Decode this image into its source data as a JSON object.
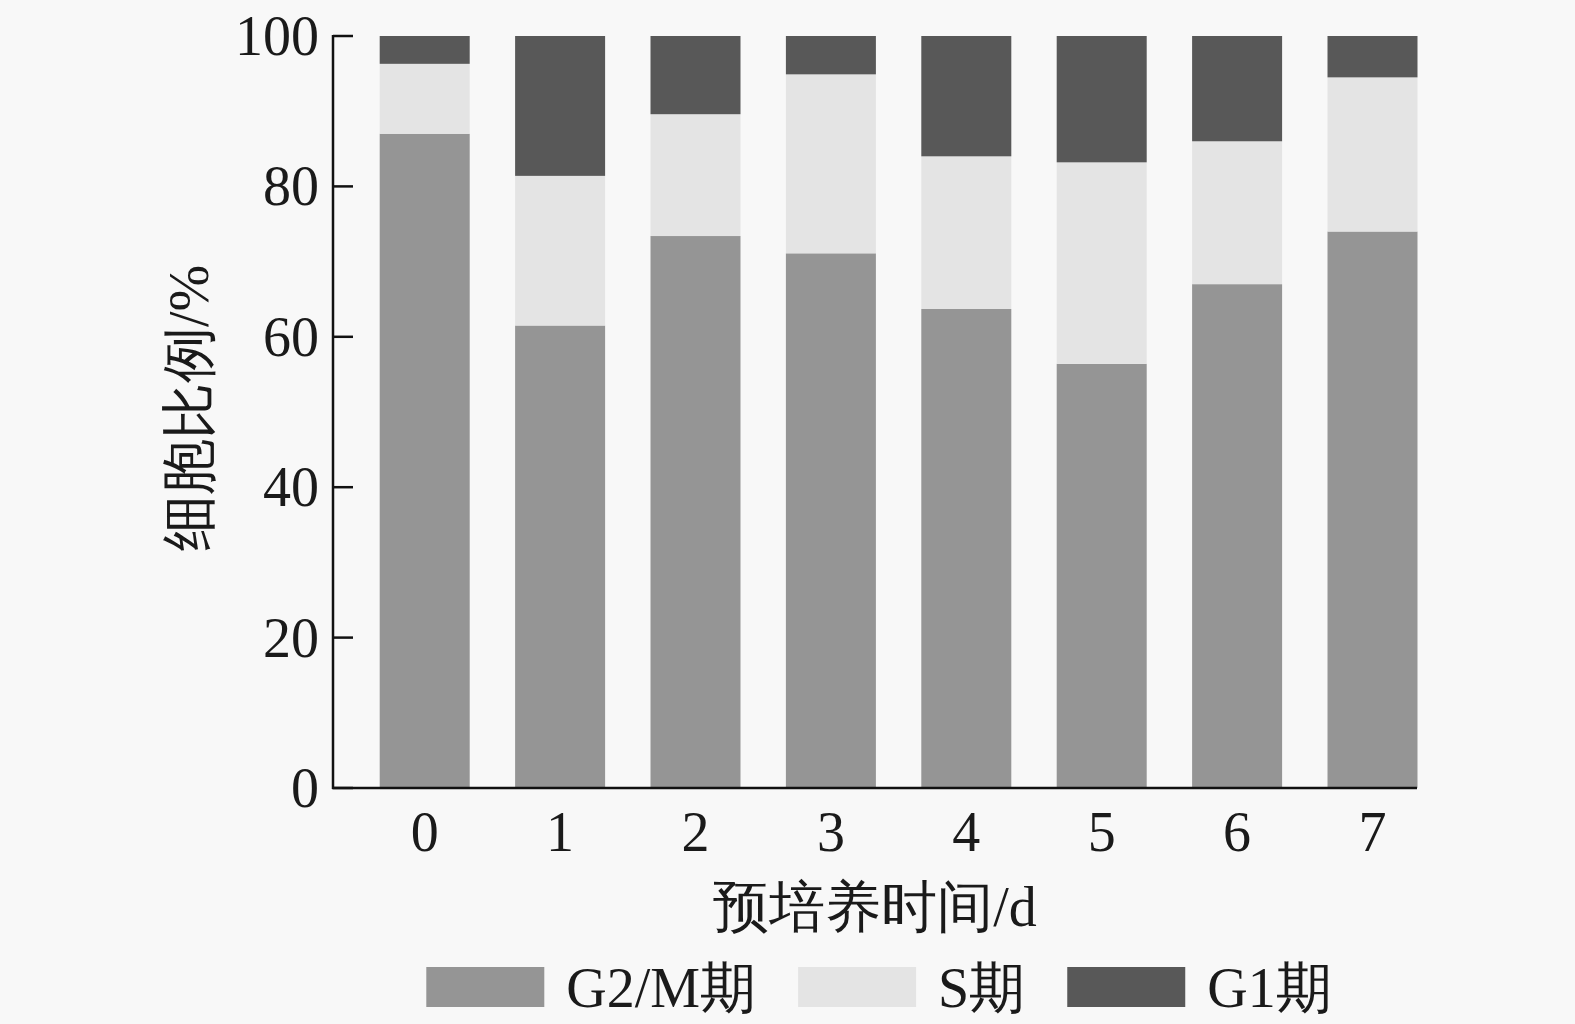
{
  "chart_data": {
    "type": "bar",
    "stacked": true,
    "categories": [
      "0",
      "1",
      "2",
      "3",
      "4",
      "5",
      "6",
      "7"
    ],
    "xlabel": "预培养时间/d",
    "ylabel": "细胞比例/%",
    "ylim": [
      0,
      100
    ],
    "yticks": [
      0,
      20,
      40,
      60,
      80,
      100
    ],
    "legend": "bottom",
    "series": [
      {
        "name": "G2/M期",
        "color": "#959595",
        "values": [
          87.0,
          61.5,
          73.4,
          71.1,
          63.7,
          56.4,
          67.0,
          74.0
        ]
      },
      {
        "name": "S期",
        "color": "#e4e4e4",
        "values": [
          9.3,
          19.9,
          16.2,
          23.8,
          20.3,
          26.8,
          19.0,
          20.5
        ]
      },
      {
        "name": "G1期",
        "color": "#585858",
        "values": [
          3.7,
          18.6,
          10.4,
          5.1,
          16.0,
          16.8,
          14.0,
          5.5
        ]
      }
    ]
  }
}
